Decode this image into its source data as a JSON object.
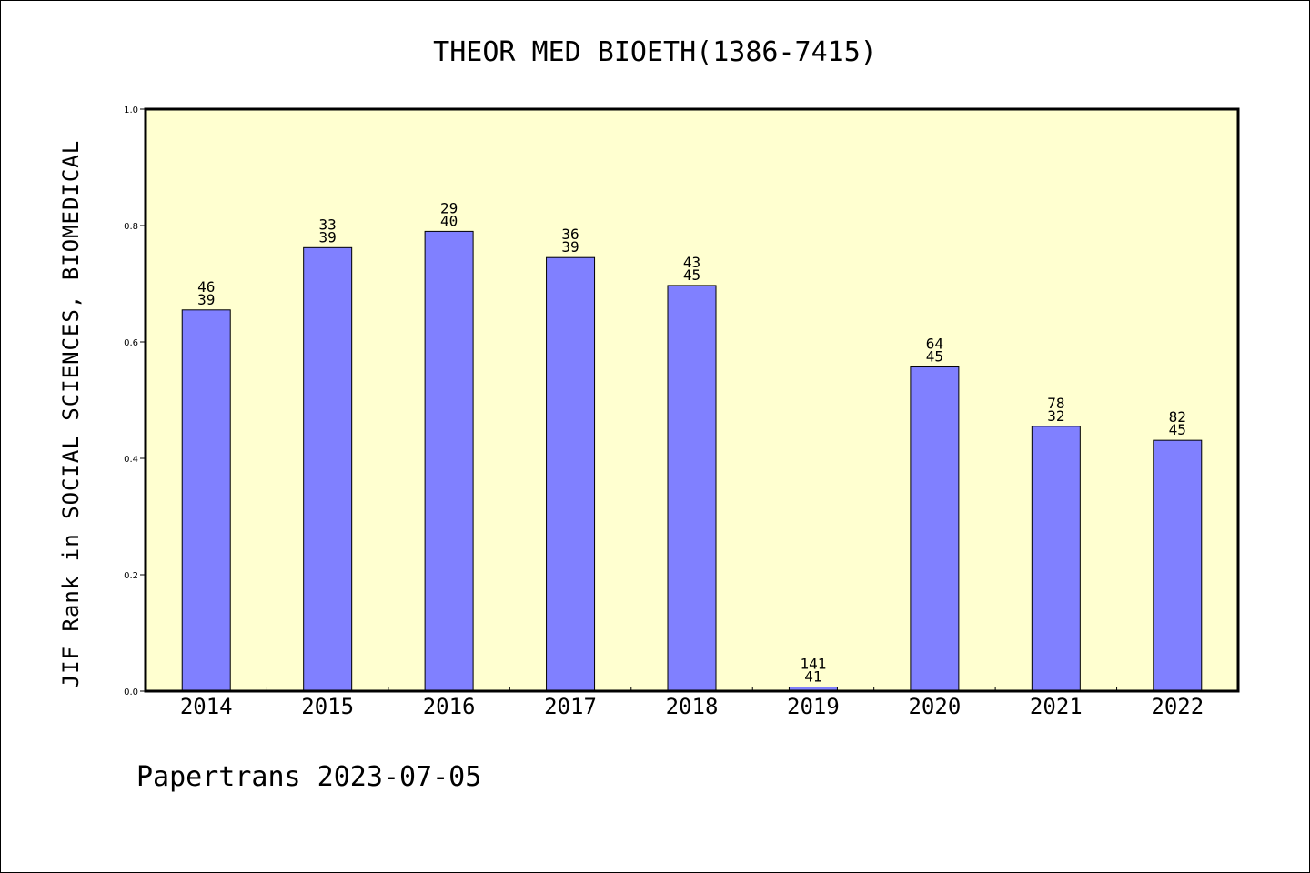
{
  "chart_data": {
    "type": "bar",
    "title": "THEOR MED BIOETH(1386-7415)",
    "xlabel": "",
    "ylabel": "JIF Rank in SOCIAL SCIENCES, BIOMEDICAL",
    "footer": "Papertrans 2023-07-05",
    "ylim": [
      0,
      1.0
    ],
    "yticks": [
      "0.0",
      "0.2",
      "0.4",
      "0.6",
      "0.8",
      "1.0"
    ],
    "grid": false,
    "plot_background": "#ffffd0",
    "bar_color": "#8080ff",
    "categories": [
      "2014",
      "2015",
      "2016",
      "2017",
      "2018",
      "2019",
      "2020",
      "2021",
      "2022"
    ],
    "values": [
      0.655,
      0.762,
      0.79,
      0.745,
      0.697,
      0.007,
      0.557,
      0.455,
      0.431
    ],
    "rank_labels": [
      "46",
      "33",
      "29",
      "36",
      "43",
      "141",
      "64",
      "78",
      "82"
    ],
    "total_labels": [
      "39",
      "39",
      "40",
      "39",
      "45",
      "41",
      "45",
      "32",
      "45"
    ]
  }
}
